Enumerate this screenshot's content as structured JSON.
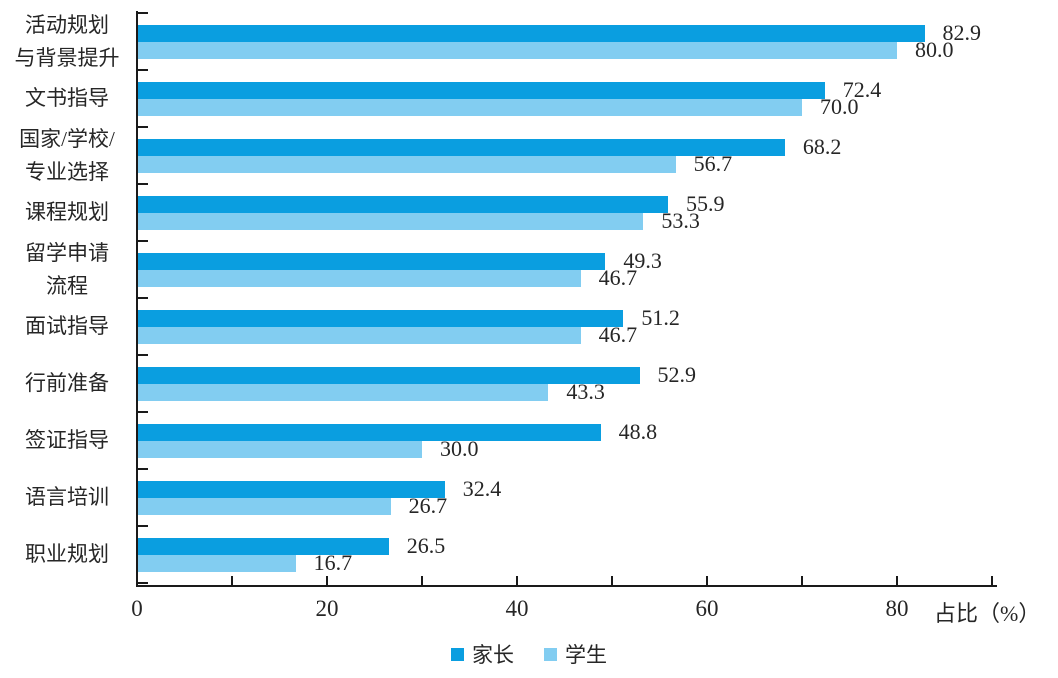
{
  "chart_data": {
    "type": "bar",
    "orientation": "horizontal",
    "title": "",
    "xlabel": "占比（%）",
    "ylabel": "",
    "categories": [
      "活动规划\n与背景提升",
      "文书指导",
      "国家/学校/\n专业选择",
      "课程规划",
      "留学申请\n流程",
      "面试指导",
      "行前准备",
      "签证指导",
      "语言培训",
      "职业规划"
    ],
    "series": [
      {
        "name": "家长",
        "color": "#0a9ee0",
        "values": [
          82.9,
          72.4,
          68.2,
          55.9,
          49.3,
          51.2,
          52.9,
          48.8,
          32.4,
          26.5
        ]
      },
      {
        "name": "学生",
        "color": "#82cdf1",
        "values": [
          80.0,
          70.0,
          56.7,
          53.3,
          46.7,
          46.7,
          43.3,
          30.0,
          26.7,
          16.7
        ]
      }
    ],
    "x_ticks": [
      0,
      20,
      40,
      60,
      80
    ],
    "xlim": [
      0,
      90
    ],
    "grid": "off",
    "legend_position": "bottom",
    "axis_color": "#1a1a1a"
  }
}
